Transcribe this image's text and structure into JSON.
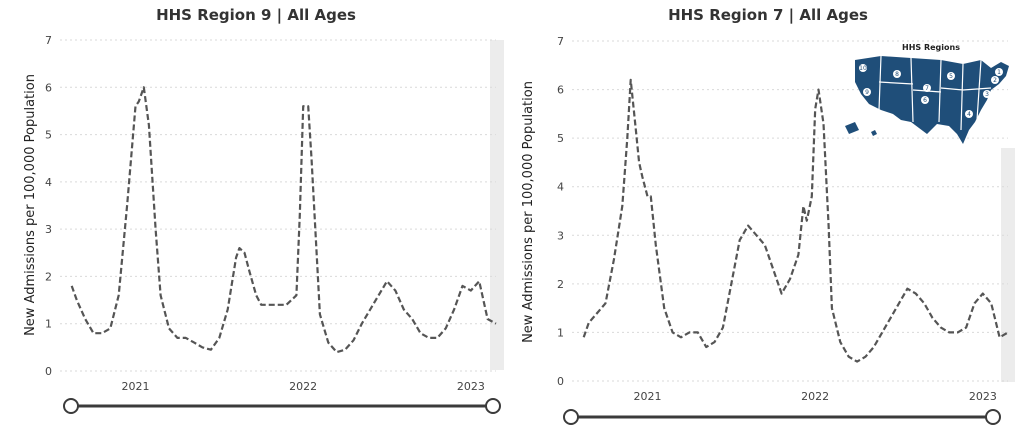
{
  "chart_data": [
    {
      "type": "line",
      "title": "HHS Region 9 | All Ages",
      "ylabel": "New Admissions per 100,000 Population",
      "xlabel": "",
      "ylim": [
        0,
        7
      ],
      "yticks": [
        "0",
        "1",
        "2",
        "3",
        "4",
        "5",
        "6",
        "7"
      ],
      "xtick_labels": [
        "2021",
        "2022",
        "2023"
      ],
      "xtick_positions": [
        2021.0,
        2022.0,
        2023.0
      ],
      "xlim": [
        2020.55,
        2023.15
      ],
      "grid": true,
      "series": [
        {
          "x": [
            2020.62,
            2020.65,
            2020.7,
            2020.75,
            2020.8,
            2020.85,
            2020.9,
            2020.95,
            2021.0,
            2021.02,
            2021.05,
            2021.08,
            2021.12,
            2021.15,
            2021.2,
            2021.25,
            2021.3,
            2021.35,
            2021.4,
            2021.45,
            2021.5,
            2021.55,
            2021.6,
            2021.62,
            2021.65,
            2021.68,
            2021.72,
            2021.75,
            2021.8,
            2021.85,
            2021.9,
            2021.93,
            2021.96,
            2021.98,
            2022.0,
            2022.03,
            2022.05,
            2022.08,
            2022.1,
            2022.15,
            2022.2,
            2022.25,
            2022.3,
            2022.35,
            2022.4,
            2022.45,
            2022.5,
            2022.55,
            2022.6,
            2022.65,
            2022.7,
            2022.75,
            2022.8,
            2022.85,
            2022.9,
            2022.95,
            2023.0,
            2023.05,
            2023.1,
            2023.15
          ],
          "y": [
            1.8,
            1.5,
            1.1,
            0.8,
            0.8,
            0.9,
            1.6,
            3.5,
            5.6,
            5.7,
            6.0,
            5.2,
            3.0,
            1.6,
            0.9,
            0.7,
            0.7,
            0.6,
            0.5,
            0.45,
            0.7,
            1.3,
            2.4,
            2.6,
            2.5,
            2.1,
            1.6,
            1.4,
            1.4,
            1.4,
            1.4,
            1.5,
            1.6,
            3.3,
            5.6,
            5.6,
            4.5,
            2.5,
            1.2,
            0.6,
            0.4,
            0.45,
            0.65,
            1.0,
            1.3,
            1.6,
            1.9,
            1.7,
            1.3,
            1.1,
            0.8,
            0.7,
            0.7,
            0.9,
            1.3,
            1.8,
            1.7,
            1.9,
            1.1,
            1.0
          ]
        }
      ]
    },
    {
      "type": "line",
      "title": "HHS Region 7 | All Ages",
      "ylabel": "New Admissions per 100,000 Population",
      "xlabel": "",
      "ylim": [
        0,
        7
      ],
      "yticks": [
        "0",
        "1",
        "2",
        "3",
        "4",
        "5",
        "6",
        "7"
      ],
      "xtick_labels": [
        "2021",
        "2022",
        "2023"
      ],
      "xtick_positions": [
        2021.0,
        2022.0,
        2023.0
      ],
      "xlim": [
        2020.55,
        2023.15
      ],
      "grid": true,
      "series": [
        {
          "x": [
            2020.62,
            2020.65,
            2020.7,
            2020.75,
            2020.8,
            2020.85,
            2020.88,
            2020.9,
            2020.93,
            2020.95,
            2020.97,
            2021.0,
            2021.02,
            2021.05,
            2021.1,
            2021.15,
            2021.2,
            2021.25,
            2021.3,
            2021.35,
            2021.4,
            2021.45,
            2021.5,
            2021.55,
            2021.6,
            2021.65,
            2021.7,
            2021.75,
            2021.8,
            2021.85,
            2021.9,
            2021.93,
            2021.95,
            2021.98,
            2022.0,
            2022.02,
            2022.05,
            2022.08,
            2022.1,
            2022.15,
            2022.2,
            2022.25,
            2022.3,
            2022.35,
            2022.4,
            2022.45,
            2022.5,
            2022.55,
            2022.6,
            2022.65,
            2022.7,
            2022.75,
            2022.8,
            2022.85,
            2022.9,
            2022.95,
            2023.0,
            2023.05,
            2023.1,
            2023.15
          ],
          "y": [
            0.9,
            1.2,
            1.4,
            1.6,
            2.5,
            3.6,
            5.0,
            6.2,
            5.2,
            4.5,
            4.2,
            3.8,
            3.8,
            2.8,
            1.5,
            1.0,
            0.9,
            1.0,
            1.0,
            0.7,
            0.8,
            1.1,
            2.0,
            2.9,
            3.2,
            3.0,
            2.8,
            2.3,
            1.8,
            2.1,
            2.6,
            3.6,
            3.3,
            3.8,
            5.6,
            6.0,
            5.3,
            3.2,
            1.5,
            0.8,
            0.5,
            0.4,
            0.5,
            0.7,
            1.0,
            1.3,
            1.6,
            1.9,
            1.8,
            1.6,
            1.3,
            1.1,
            1.0,
            1.0,
            1.1,
            1.6,
            1.8,
            1.6,
            0.9,
            1.0
          ]
        }
      ]
    }
  ],
  "map_inset": {
    "title": "HHS Regions",
    "fill_color": "#1f4e79",
    "region_numbers": [
      "1",
      "2",
      "3",
      "4",
      "5",
      "6",
      "7",
      "8",
      "9",
      "10"
    ]
  },
  "colors": {
    "series": "#555555",
    "grid": "#d9d9d9",
    "map": "#1f4e79",
    "slider": "#3b3b3b"
  }
}
